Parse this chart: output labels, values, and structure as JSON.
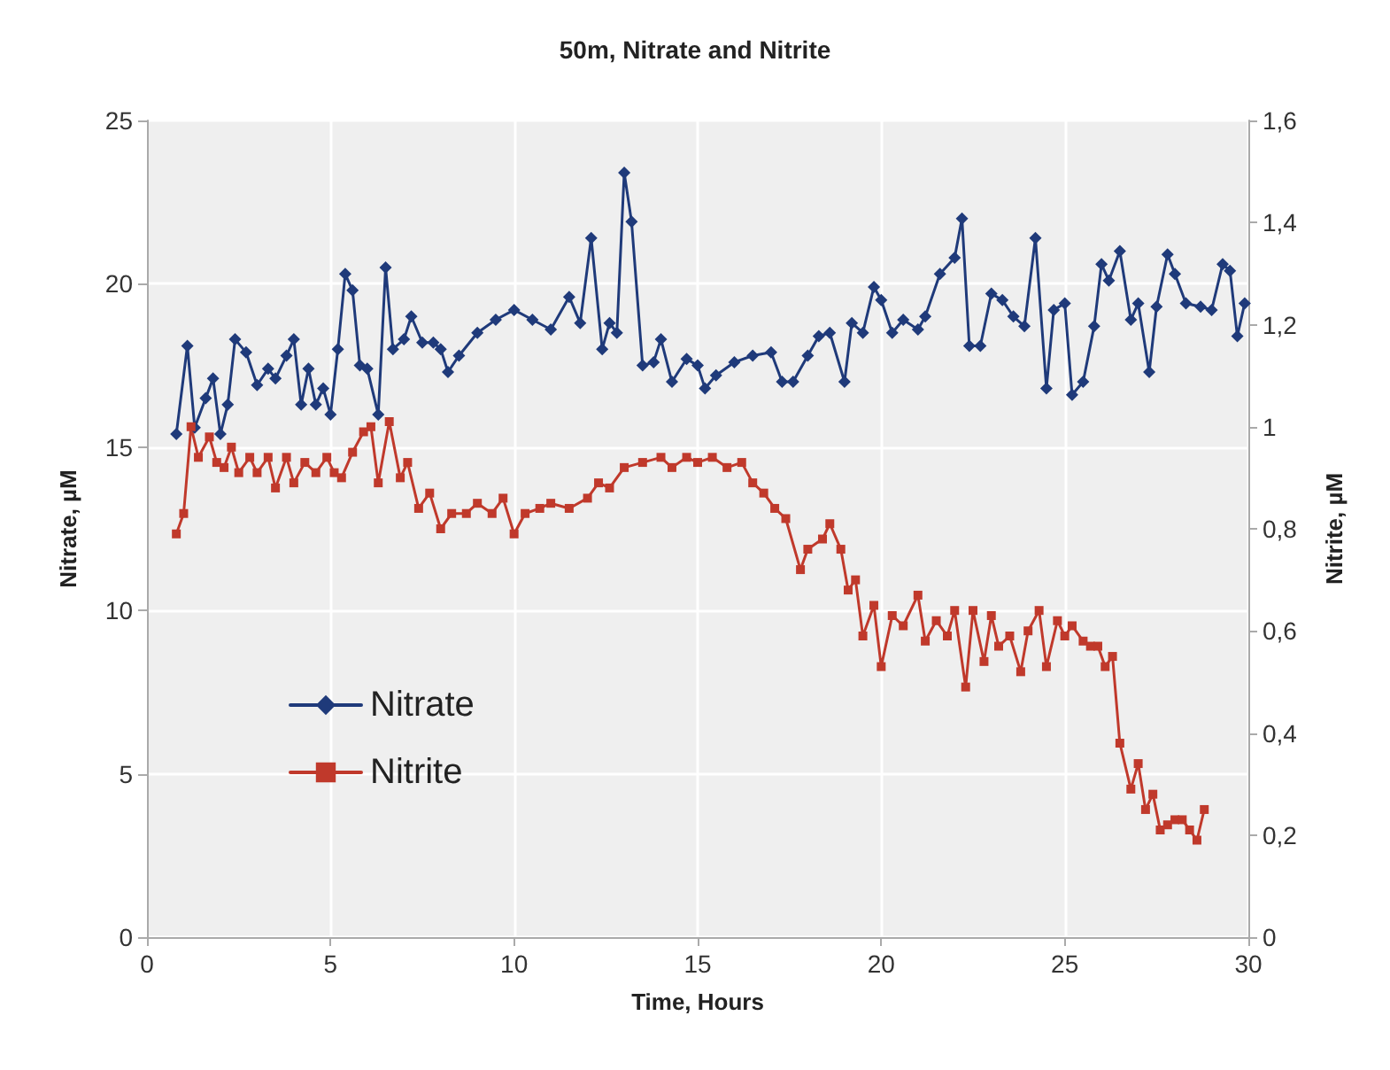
{
  "chart_data": {
    "type": "line",
    "title": "50m, Nitrate and Nitrite",
    "xlabel": "Time, Hours",
    "ylabel": "Nitrate, µM",
    "y2label": "Nitrite, µM",
    "xlim": [
      0,
      30
    ],
    "xticks": [
      0,
      5,
      10,
      15,
      20,
      25,
      30
    ],
    "ylim": [
      0,
      25
    ],
    "yticks": [
      0,
      5,
      10,
      15,
      20,
      25
    ],
    "y2lim": [
      0,
      1.6
    ],
    "y2ticks": [
      {
        "value": 0,
        "label": "0"
      },
      {
        "value": 0.2,
        "label": "0,2"
      },
      {
        "value": 0.4,
        "label": "0,4"
      },
      {
        "value": 0.6,
        "label": "0,6"
      },
      {
        "value": 0.8,
        "label": "0,8"
      },
      {
        "value": 1,
        "label": "1"
      },
      {
        "value": 1.2,
        "label": "1,2"
      },
      {
        "value": 1.4,
        "label": "1,4"
      },
      {
        "value": 1.6,
        "label": "1,6"
      }
    ],
    "grid": true,
    "legend": "left",
    "line_style": "solid",
    "series": [
      {
        "name": "Nitrate",
        "color": "#1f3a7a",
        "marker": "diamond",
        "x": [
          0.8,
          1.1,
          1.3,
          1.6,
          1.8,
          2.0,
          2.2,
          2.4,
          2.7,
          3.0,
          3.3,
          3.5,
          3.8,
          4.0,
          4.2,
          4.4,
          4.6,
          4.8,
          5.0,
          5.2,
          5.4,
          5.6,
          5.8,
          6.0,
          6.3,
          6.5,
          6.7,
          7.0,
          7.2,
          7.5,
          7.8,
          8.0,
          8.2,
          8.5,
          9.0,
          9.5,
          10.0,
          10.5,
          11.0,
          11.5,
          11.8,
          12.1,
          12.4,
          12.6,
          12.8,
          13.0,
          13.2,
          13.5,
          13.8,
          14.0,
          14.3,
          14.7,
          15.0,
          15.2,
          15.5,
          16.0,
          16.5,
          17.0,
          17.3,
          17.6,
          18.0,
          18.3,
          18.6,
          19.0,
          19.2,
          19.5,
          19.8,
          20.0,
          20.3,
          20.6,
          21.0,
          21.2,
          21.6,
          22.0,
          22.2,
          22.4,
          22.7,
          23.0,
          23.3,
          23.6,
          23.9,
          24.2,
          24.5,
          24.7,
          25.0,
          25.2,
          25.5,
          25.8,
          26.0,
          26.2,
          26.5,
          26.8,
          27.0,
          27.3,
          27.5,
          27.8,
          28.0,
          28.3,
          28.7,
          29.0,
          29.3,
          29.5,
          29.7,
          29.9
        ],
        "values": [
          15.4,
          18.1,
          15.6,
          16.5,
          17.1,
          15.4,
          16.3,
          18.3,
          17.9,
          16.9,
          17.4,
          17.1,
          17.8,
          18.3,
          16.3,
          17.4,
          16.3,
          16.8,
          16.0,
          18.0,
          20.3,
          19.8,
          17.5,
          17.4,
          16.0,
          20.5,
          18.0,
          18.3,
          19.0,
          18.2,
          18.2,
          18.0,
          17.3,
          17.8,
          18.5,
          18.9,
          19.2,
          18.9,
          18.6,
          19.6,
          18.8,
          21.4,
          18.0,
          18.8,
          18.5,
          23.4,
          21.9,
          17.5,
          17.6,
          18.3,
          17.0,
          17.7,
          17.5,
          16.8,
          17.2,
          17.6,
          17.8,
          17.9,
          17.0,
          17.0,
          17.8,
          18.4,
          18.5,
          17.0,
          18.8,
          18.5,
          19.9,
          19.5,
          18.5,
          18.9,
          18.6,
          19.0,
          20.3,
          20.8,
          22.0,
          18.1,
          18.1,
          19.7,
          19.5,
          19.0,
          18.7,
          21.4,
          16.8,
          19.2,
          19.4,
          16.6,
          17.0,
          18.7,
          20.6,
          20.1,
          21.0,
          18.9,
          19.4,
          17.3,
          19.3,
          20.9,
          20.3,
          19.4,
          19.3,
          19.2,
          20.6,
          20.4,
          18.4,
          19.4
        ]
      },
      {
        "name": "Nitrite",
        "color": "#c0392b",
        "marker": "square",
        "axis": "y2",
        "x": [
          0.8,
          1.0,
          1.2,
          1.4,
          1.7,
          1.9,
          2.1,
          2.3,
          2.5,
          2.8,
          3.0,
          3.3,
          3.5,
          3.8,
          4.0,
          4.3,
          4.6,
          4.9,
          5.1,
          5.3,
          5.6,
          5.9,
          6.1,
          6.3,
          6.6,
          6.9,
          7.1,
          7.4,
          7.7,
          8.0,
          8.3,
          8.7,
          9.0,
          9.4,
          9.7,
          10.0,
          10.3,
          10.7,
          11.0,
          11.5,
          12.0,
          12.3,
          12.6,
          13.0,
          13.5,
          14.0,
          14.3,
          14.7,
          15.0,
          15.4,
          15.8,
          16.2,
          16.5,
          16.8,
          17.1,
          17.4,
          17.8,
          18.0,
          18.4,
          18.6,
          18.9,
          19.1,
          19.3,
          19.5,
          19.8,
          20.0,
          20.3,
          20.6,
          21.0,
          21.2,
          21.5,
          21.8,
          22.0,
          22.3,
          22.5,
          22.8,
          23.0,
          23.2,
          23.5,
          23.8,
          24.0,
          24.3,
          24.5,
          24.8,
          25.0,
          25.2,
          25.5,
          25.7,
          25.9,
          26.1,
          26.3,
          26.5,
          26.8,
          27.0,
          27.2,
          27.4,
          27.6,
          27.8,
          28.0,
          28.2,
          28.4,
          28.6,
          28.8
        ],
        "values": [
          0.79,
          0.83,
          1.0,
          0.94,
          0.98,
          0.93,
          0.92,
          0.96,
          0.91,
          0.94,
          0.91,
          0.94,
          0.88,
          0.94,
          0.89,
          0.93,
          0.91,
          0.94,
          0.91,
          0.9,
          0.95,
          0.99,
          1.0,
          0.89,
          1.01,
          0.9,
          0.93,
          0.84,
          0.87,
          0.8,
          0.83,
          0.83,
          0.85,
          0.83,
          0.86,
          0.79,
          0.83,
          0.84,
          0.85,
          0.84,
          0.86,
          0.89,
          0.88,
          0.92,
          0.93,
          0.94,
          0.92,
          0.94,
          0.93,
          0.94,
          0.92,
          0.93,
          0.89,
          0.87,
          0.84,
          0.82,
          0.72,
          0.76,
          0.78,
          0.81,
          0.76,
          0.68,
          0.7,
          0.59,
          0.65,
          0.53,
          0.63,
          0.61,
          0.67,
          0.58,
          0.62,
          0.59,
          0.64,
          0.49,
          0.64,
          0.54,
          0.63,
          0.57,
          0.59,
          0.52,
          0.6,
          0.64,
          0.53,
          0.62,
          0.59,
          0.61,
          0.58,
          0.57,
          0.57,
          0.53,
          0.55,
          0.38,
          0.29,
          0.34,
          0.25,
          0.28,
          0.21,
          0.22,
          0.23,
          0.23,
          0.21,
          0.19,
          0.25
        ]
      }
    ]
  }
}
